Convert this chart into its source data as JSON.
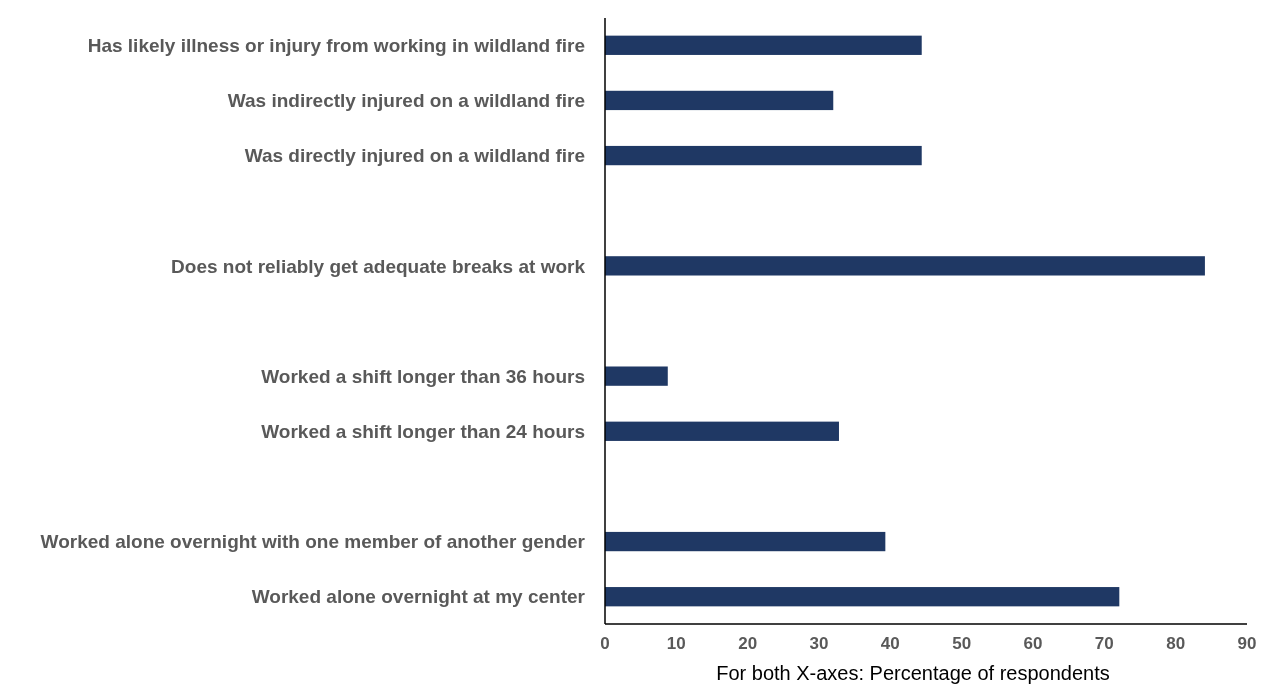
{
  "chart_data": {
    "type": "bar",
    "orientation": "horizontal",
    "categories": [
      "Has likely illness or injury from working in wildland fire",
      "Was indirectly injured on a wildland fire",
      "Was directly injured on a wildland fire",
      null,
      "Does not reliably get adequate breaks at work",
      null,
      "Worked a shift longer than 36 hours",
      "Worked a shift longer than 24 hours",
      null,
      "Worked alone overnight with one member of another gender",
      "Worked alone overnight at my center"
    ],
    "values": [
      44.4,
      32.0,
      44.4,
      null,
      84.1,
      null,
      8.8,
      32.8,
      null,
      39.3,
      72.1
    ],
    "color": "#1f3864",
    "xlim": [
      0,
      90
    ],
    "xticks": [
      0,
      10,
      20,
      30,
      40,
      50,
      60,
      70,
      80,
      90
    ],
    "xlabel": "For both X-axes: Percentage of respondents",
    "grid": false
  }
}
